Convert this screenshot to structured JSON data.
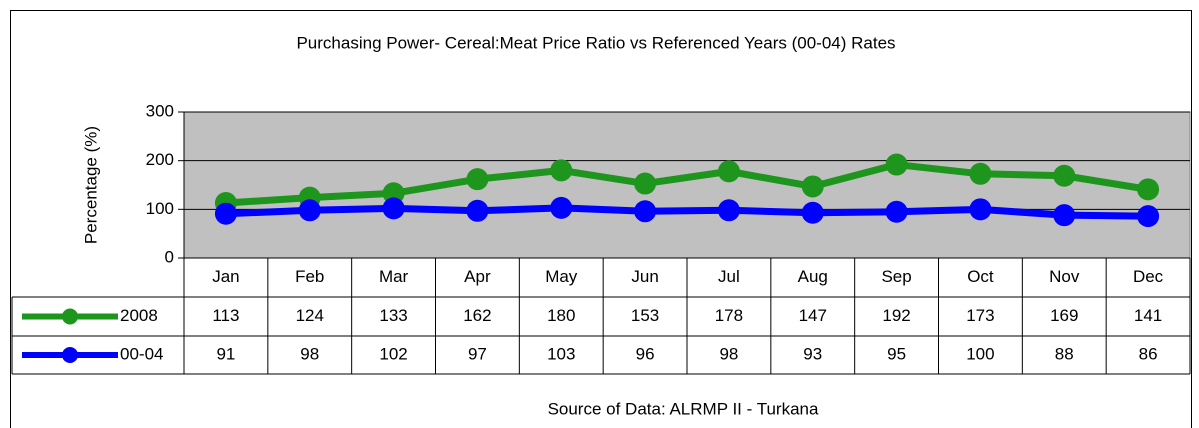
{
  "chart_data": {
    "type": "line",
    "title": "Purchasing Power- Cereal:Meat Price Ratio vs Referenced Years (00-04) Rates",
    "y_label": "Percentage (%)",
    "source": "Source of Data: ALRMP II - Turkana",
    "categories": [
      "Jan",
      "Feb",
      "Mar",
      "Apr",
      "May",
      "Jun",
      "Jul",
      "Aug",
      "Sep",
      "Oct",
      "Nov",
      "Dec"
    ],
    "series": [
      {
        "name": "2008",
        "color": "#1e961e",
        "values": [
          113,
          124,
          133,
          162,
          180,
          153,
          178,
          147,
          192,
          173,
          169,
          141
        ]
      },
      {
        "name": "00-04",
        "color": "#0000ff",
        "values": [
          91,
          98,
          102,
          97,
          103,
          96,
          98,
          93,
          95,
          100,
          88,
          86
        ]
      }
    ],
    "ylim": [
      0,
      300
    ],
    "yticks": [
      0,
      100,
      200,
      300
    ],
    "grid": true,
    "plot_background": "#c0c0c0"
  }
}
